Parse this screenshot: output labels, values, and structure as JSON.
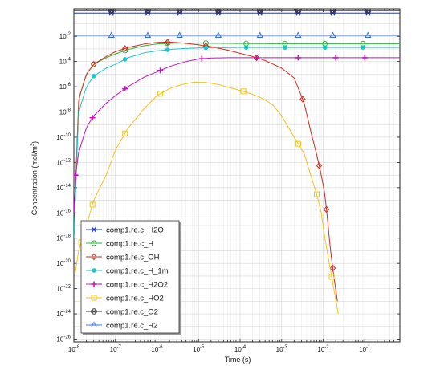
{
  "chart_data": {
    "type": "line",
    "xscale": "log",
    "yscale": "log",
    "xlabel": "Time (s)",
    "ylabel": "Concentration (mol/m",
    "ylabel_sup": "3",
    "ylabel_close": ")",
    "xlim": [
      1e-08,
      0.7
    ],
    "ylim": [
      6e-27,
      1.5
    ],
    "grid": true,
    "legend_position": "bottom-left",
    "x_ticks": [
      {
        "base": "10",
        "exp": "-8",
        "value": 1e-08
      },
      {
        "base": "10",
        "exp": "-7",
        "value": 1e-07
      },
      {
        "base": "10",
        "exp": "-6",
        "value": 1e-06
      },
      {
        "base": "10",
        "exp": "-5",
        "value": 1e-05
      },
      {
        "base": "10",
        "exp": "-4",
        "value": 0.0001
      },
      {
        "base": "10",
        "exp": "-3",
        "value": 0.001
      },
      {
        "base": "10",
        "exp": "-2",
        "value": 0.01
      },
      {
        "base": "10",
        "exp": "-1",
        "value": 0.1
      }
    ],
    "y_ticks": [
      {
        "base": "10",
        "exp": "-2",
        "value": 0.01
      },
      {
        "base": "10",
        "exp": "-4",
        "value": 0.0001
      },
      {
        "base": "10",
        "exp": "-6",
        "value": 1e-06
      },
      {
        "base": "10",
        "exp": "-8",
        "value": 1e-08
      },
      {
        "base": "10",
        "exp": "-10",
        "value": 1e-10
      },
      {
        "base": "10",
        "exp": "-12",
        "value": 1e-12
      },
      {
        "base": "10",
        "exp": "-14",
        "value": 1e-14
      },
      {
        "base": "10",
        "exp": "-16",
        "value": 1e-16
      },
      {
        "base": "10",
        "exp": "-18",
        "value": 1e-18
      },
      {
        "base": "10",
        "exp": "-20",
        "value": 1e-20
      },
      {
        "base": "10",
        "exp": "-22",
        "value": 1e-22
      },
      {
        "base": "10",
        "exp": "-24",
        "value": 1e-24
      },
      {
        "base": "10",
        "exp": "-26",
        "value": 1e-26
      }
    ],
    "series": [
      {
        "name": "comp1.re.c_H2O",
        "color": "#1f3bd6",
        "marker": "asterisk",
        "x": [
          1e-08,
          1e-07,
          1e-05,
          0.001,
          0.1,
          0.7
        ],
        "y": [
          0.7,
          0.7,
          0.7,
          0.7,
          0.7,
          0.7
        ],
        "marker_x": [
          8e-08,
          6e-07,
          3.5e-06,
          3e-05,
          0.0003,
          0.0025,
          0.017,
          0.12
        ]
      },
      {
        "name": "comp1.re.c_H",
        "color": "#2bb53a",
        "marker": "circle",
        "x": [
          1e-08,
          1.3e-08,
          2e-08,
          3e-08,
          6e-08,
          1e-07,
          2e-07,
          5e-07,
          1e-06,
          2e-06,
          4e-06,
          1e-05,
          3e-05,
          0.0001,
          0.001,
          0.01,
          0.1,
          0.7
        ],
        "y": [
          1e-18,
          1e-07,
          1e-05,
          6e-05,
          0.0002,
          0.0004,
          0.0009,
          0.0018,
          0.0025,
          0.0028,
          0.0029,
          0.0029,
          0.0028,
          0.0027,
          0.0026,
          0.0026,
          0.0026,
          0.0026
        ],
        "marker_x": [
          3e-08,
          1.7e-07,
          1.8e-06,
          1.5e-05,
          0.00014,
          0.0012,
          0.011,
          0.09
        ]
      },
      {
        "name": "comp1.re.c_OH",
        "color": "#d42a1e",
        "marker": "diamond",
        "x": [
          1e-08,
          1.3e-08,
          2e-08,
          3e-08,
          6e-08,
          1e-07,
          2e-07,
          5e-07,
          1e-06,
          2e-06,
          4e-06,
          1e-05,
          2e-05,
          5e-05,
          0.0001,
          0.0002,
          0.0004,
          0.001,
          0.002,
          0.0035,
          0.005,
          0.007,
          0.009,
          0.011,
          0.013,
          0.015,
          0.018,
          0.022
        ],
        "y": [
          1e-18,
          1e-07,
          1e-05,
          6e-05,
          0.00025,
          0.0006,
          0.0013,
          0.0025,
          0.0033,
          0.0035,
          0.003,
          0.0021,
          0.0015,
          0.0008,
          0.00045,
          0.00025,
          0.00012,
          3e-05,
          5e-06,
          5e-08,
          3e-10,
          4e-12,
          1e-13,
          3e-15,
          1.5e-17,
          1e-19,
          1e-21,
          1e-23
        ],
        "marker_x": [
          3e-08,
          1.7e-07,
          1.8e-06,
          1.5e-05,
          0.00025,
          0.0032,
          0.008,
          0.012,
          0.017
        ]
      },
      {
        "name": "comp1.re.c_H_1m",
        "color": "#1bc6d0",
        "marker": "filled-circle",
        "x": [
          1e-08,
          1.3e-08,
          2e-08,
          3e-08,
          6e-08,
          1e-07,
          2e-07,
          5e-07,
          1e-06,
          3e-06,
          1e-05,
          0.0001,
          0.001,
          0.01,
          0.1,
          0.7
        ],
        "y": [
          1e-18,
          1e-08,
          1e-06,
          7e-06,
          3e-05,
          6e-05,
          0.0002,
          0.0005,
          0.0007,
          0.001,
          0.0012,
          0.0013,
          0.0013,
          0.0013,
          0.0013,
          0.0013
        ],
        "marker_x": [
          3e-08,
          1.7e-07,
          1.8e-06,
          1.5e-05,
          0.00014,
          0.0012,
          0.011,
          0.09
        ]
      },
      {
        "name": "comp1.re.c_H2O2",
        "color": "#c711bd",
        "marker": "plus",
        "x": [
          1e-08,
          1.1e-08,
          1.3e-08,
          2e-08,
          3e-08,
          6e-08,
          1e-07,
          2e-07,
          5e-07,
          1e-06,
          2e-06,
          5e-06,
          1e-05,
          2e-05,
          5e-05,
          0.0001,
          0.001,
          0.01,
          0.1,
          0.7
        ],
        "y": [
          1e-16,
          1e-13,
          6e-12,
          6e-10,
          5e-09,
          5e-08,
          2e-07,
          1e-06,
          6e-06,
          1.5e-05,
          4e-05,
          0.0001,
          0.00016,
          0.00019,
          0.0002,
          0.0002,
          0.0002,
          0.0002,
          0.0002,
          0.0002
        ],
        "marker_x": [
          1.1e-08,
          2.8e-08,
          1.7e-07,
          1.2e-06,
          1.2e-05,
          0.00025,
          0.0025,
          0.02,
          0.1
        ]
      },
      {
        "name": "comp1.re.c_HO2",
        "color": "#f5c21b",
        "marker": "square",
        "x": [
          1.05e-08,
          1.3e-08,
          2e-08,
          3e-08,
          6e-08,
          1e-07,
          2e-07,
          5e-07,
          1e-06,
          2e-06,
          4e-06,
          8e-06,
          1.5e-05,
          3e-05,
          7e-05,
          0.00015,
          0.0003,
          0.0006,
          0.001,
          0.002,
          0.0035,
          0.005,
          0.007,
          0.009,
          0.011,
          0.014,
          0.018,
          0.023
        ],
        "y": [
          1e-21,
          1e-19,
          1e-17,
          1e-15,
          1e-13,
          1e-11,
          5e-10,
          2e-08,
          2e-07,
          7e-07,
          1.5e-06,
          2.3e-06,
          2.2e-06,
          1.5e-06,
          7e-07,
          3.5e-07,
          1.5e-07,
          4e-08,
          5e-09,
          1e-10,
          5e-12,
          1e-13,
          3e-15,
          1e-16,
          1e-18,
          1e-20,
          1e-22,
          1e-24
        ],
        "marker_x": [
          1.5e-08,
          2.8e-08,
          1.7e-07,
          1.2e-06,
          0.00012,
          0.0025,
          0.007,
          0.016
        ]
      },
      {
        "name": "comp1.re.c_O2",
        "color": "#333333",
        "marker": "circle-x",
        "x": [
          1e-08,
          1e-07,
          1e-05,
          0.001,
          0.1,
          0.7
        ],
        "y": [
          1.1,
          1.1,
          1.1,
          1.1,
          1.1,
          1.1
        ],
        "marker_x": [
          8e-08,
          6e-07,
          3.5e-06,
          3e-05,
          0.0003,
          0.0025,
          0.017,
          0.12
        ]
      },
      {
        "name": "comp1.re.c_H2",
        "color": "#3b6fe0",
        "marker": "triangle",
        "x": [
          1e-08,
          1e-07,
          1e-05,
          0.001,
          0.1,
          0.7
        ],
        "y": [
          0.012,
          0.012,
          0.012,
          0.012,
          0.012,
          0.012
        ],
        "marker_x": [
          8e-08,
          6e-07,
          3.5e-06,
          3e-05,
          0.0003,
          0.0025,
          0.017,
          0.12
        ]
      }
    ]
  }
}
